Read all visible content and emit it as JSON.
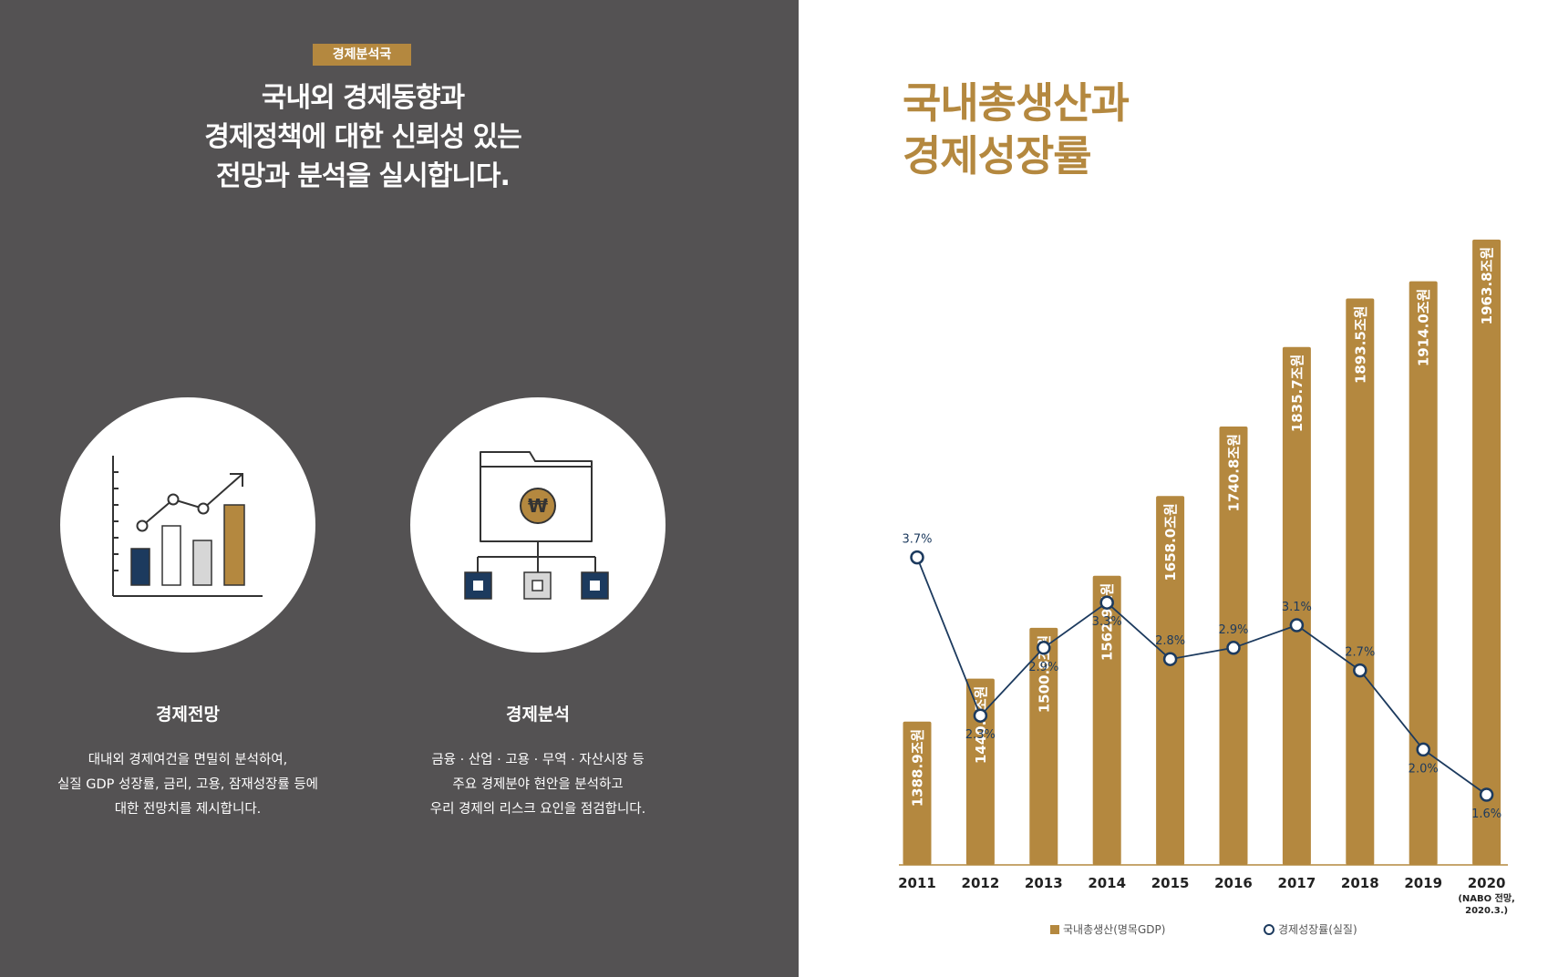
{
  "left": {
    "badge": "경제분석국",
    "headline_lines": [
      "국내외 경제동향과",
      "경제정책에 대한 신뢰성 있는",
      "전망과 분석을 실시합니다."
    ],
    "cards": [
      {
        "title": "경제전망",
        "icon": "bar-line-chart-icon",
        "desc_lines": [
          "대내외 경제여건을 면밀히 분석하여,",
          "실질 GDP 성장률, 금리, 고용, 잠재성장률 등에",
          "대한 전망치를 제시합니다."
        ]
      },
      {
        "title": "경제분석",
        "icon": "won-folder-tree-icon",
        "won_symbol": "₩",
        "desc_lines": [
          "금융 · 산업 · 고용 · 무역 · 자산시장 등",
          "주요 경제분야 현안을 분석하고",
          "우리 경제의 리스크 요인을 점검합니다."
        ]
      }
    ]
  },
  "chart_title_lines": [
    "국내총생산과",
    "경제성장률"
  ],
  "colors": {
    "left_bg": "#545253",
    "accent": "#b4883f",
    "navy": "#1c3a5e",
    "light_gray": "#d6d6d6"
  },
  "chart_data": {
    "type": "bar",
    "categories": [
      "2011",
      "2012",
      "2013",
      "2014",
      "2015",
      "2016",
      "2017",
      "2018",
      "2019",
      "2020"
    ],
    "category_notes": {
      "2020": [
        "(NABO 전망,",
        "2020.3.)"
      ]
    },
    "series": [
      {
        "name": "국내총생산(명목GDP)",
        "type": "bar",
        "values": [
          1388.9,
          1440.1,
          1500.8,
          1562.9,
          1658.0,
          1740.8,
          1835.7,
          1893.5,
          1914.0,
          1963.8
        ],
        "labels": [
          "1388.9조원",
          "1440.1조원",
          "1500.8조원",
          "1562.9조원",
          "1658.0조원",
          "1740.8조원",
          "1835.7조원",
          "1893.5조원",
          "1914.0조원",
          "1963.8조원"
        ]
      },
      {
        "name": "경제성장률(실질)",
        "type": "line",
        "values": [
          3.7,
          2.3,
          2.9,
          3.3,
          2.8,
          2.9,
          3.1,
          2.7,
          2.0,
          1.6
        ],
        "labels": [
          "3.7%",
          "2.3%",
          "2.9%",
          "3.3%",
          "2.8%",
          "2.9%",
          "3.1%",
          "2.7%",
          "2.0%",
          "1.6%"
        ],
        "label_positions": [
          "above",
          "below",
          "below",
          "below",
          "above",
          "above",
          "above",
          "above",
          "below",
          "below"
        ]
      }
    ],
    "legend_position": "bottom",
    "grid": false
  }
}
